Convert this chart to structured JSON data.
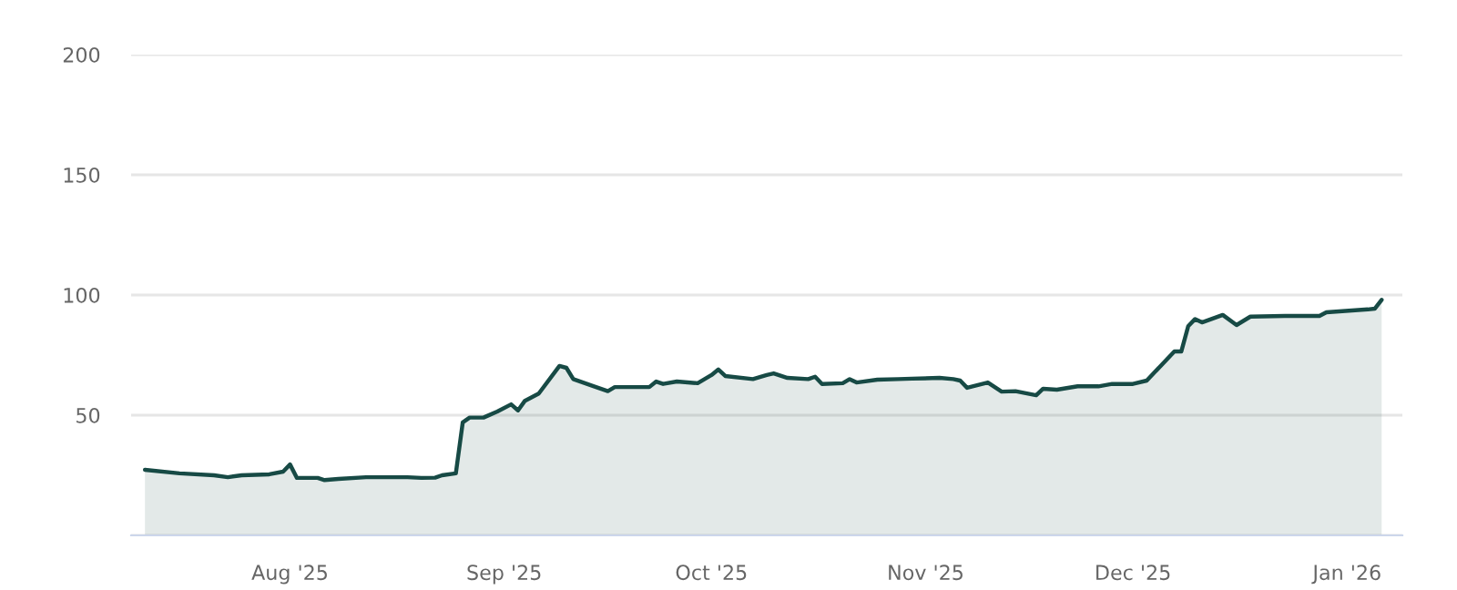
{
  "chart_data": {
    "type": "area",
    "grid": "y",
    "legend": false,
    "xlim": [
      "2025-07-09",
      "2026-01-09"
    ],
    "ylim": [
      0,
      200
    ],
    "yticks": [
      {
        "value": 0,
        "label": null
      },
      50,
      100,
      150,
      200
    ],
    "xticks": [
      {
        "value": "2025-08-01",
        "label": "Aug '25"
      },
      {
        "value": "2025-09-01",
        "label": "Sep '25"
      },
      {
        "value": "2025-10-01",
        "label": "Oct '25"
      },
      {
        "value": "2025-11-01",
        "label": "Nov '25"
      },
      {
        "value": "2025-12-01",
        "label": "Dec '25"
      },
      {
        "value": "2026-01-01",
        "label": "Jan '26"
      }
    ],
    "x": [
      "2025-07-11",
      "2025-07-16",
      "2025-07-21",
      "2025-07-23",
      "2025-07-25",
      "2025-07-29",
      "2025-07-31",
      "2025-08-01",
      "2025-08-02",
      "2025-08-05",
      "2025-08-06",
      "2025-08-08",
      "2025-08-12",
      "2025-08-18",
      "2025-08-20",
      "2025-08-22",
      "2025-08-23",
      "2025-08-25",
      "2025-08-26",
      "2025-08-27",
      "2025-08-29",
      "2025-08-31",
      "2025-09-02",
      "2025-09-03",
      "2025-09-04",
      "2025-09-06",
      "2025-09-09",
      "2025-09-10",
      "2025-09-11",
      "2025-09-14",
      "2025-09-16",
      "2025-09-17",
      "2025-09-22",
      "2025-09-23",
      "2025-09-24",
      "2025-09-26",
      "2025-09-29",
      "2025-10-01",
      "2025-10-02",
      "2025-10-03",
      "2025-10-07",
      "2025-10-09",
      "2025-10-10",
      "2025-10-12",
      "2025-10-15",
      "2025-10-16",
      "2025-10-17",
      "2025-10-20",
      "2025-10-21",
      "2025-10-22",
      "2025-10-25",
      "2025-10-28",
      "2025-10-30",
      "2025-11-03",
      "2025-11-05",
      "2025-11-06",
      "2025-11-07",
      "2025-11-10",
      "2025-11-12",
      "2025-11-14",
      "2025-11-17",
      "2025-11-18",
      "2025-11-20",
      "2025-11-23",
      "2025-11-26",
      "2025-11-28",
      "2025-12-01",
      "2025-12-03",
      "2025-12-07",
      "2025-12-08",
      "2025-12-09",
      "2025-12-10",
      "2025-12-11",
      "2025-12-14",
      "2025-12-16",
      "2025-12-18",
      "2025-12-23",
      "2025-12-28",
      "2025-12-29",
      "2026-01-04",
      "2026-01-05",
      "2026-01-06"
    ],
    "series": [
      {
        "color": "#174a45",
        "values": [
          27.3,
          25.8,
          25,
          24.2,
          25,
          25.4,
          26.5,
          29.5,
          23.9,
          23.9,
          23,
          23.5,
          24.2,
          24.2,
          23.9,
          24,
          25,
          25.8,
          47,
          49,
          49,
          51.5,
          54.5,
          52,
          56,
          59,
          70.5,
          69.7,
          65,
          62,
          60,
          61.7,
          61.7,
          64,
          63,
          64,
          63.3,
          66.7,
          69,
          66.3,
          65,
          66.7,
          67.4,
          65.5,
          65,
          66,
          63,
          63.3,
          65,
          63.6,
          64.8,
          65,
          65.2,
          65.5,
          65,
          64.4,
          61.4,
          63.6,
          59.8,
          60,
          58.3,
          61,
          60.6,
          62,
          62,
          63,
          63,
          64.4,
          76.5,
          76.5,
          87,
          90,
          88.6,
          91.7,
          87.5,
          91,
          91.3,
          91.3,
          92.8,
          94,
          94.3,
          98
        ]
      }
    ]
  }
}
